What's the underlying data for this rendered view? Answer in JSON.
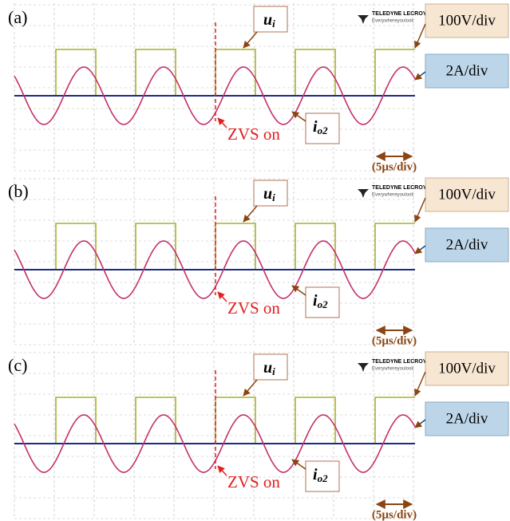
{
  "brand": {
    "name": "TELEDYNE LECROY",
    "slogan": "Everywhereyoulook"
  },
  "panels": [
    {
      "label": "(a)",
      "ui": {
        "main": "u",
        "sub": "i"
      },
      "volt_scale": "100V/div",
      "amp_scale": "2A/div",
      "zvs": "ZVS on",
      "io2": {
        "main": "i",
        "sub": "o2"
      },
      "time_scale": "(5µs/div)"
    },
    {
      "label": "(b)",
      "ui": {
        "main": "u",
        "sub": "i"
      },
      "volt_scale": "100V/div",
      "amp_scale": "2A/div",
      "zvs": "ZVS on",
      "io2": {
        "main": "i",
        "sub": "o2"
      },
      "time_scale": "(5µs/div)"
    },
    {
      "label": "(c)",
      "ui": {
        "main": "u",
        "sub": "i"
      },
      "volt_scale": "100V/div",
      "amp_scale": "2A/div",
      "zvs": "ZVS on",
      "io2": {
        "main": "i",
        "sub": "o2"
      },
      "time_scale": "(5µs/div)"
    }
  ]
}
